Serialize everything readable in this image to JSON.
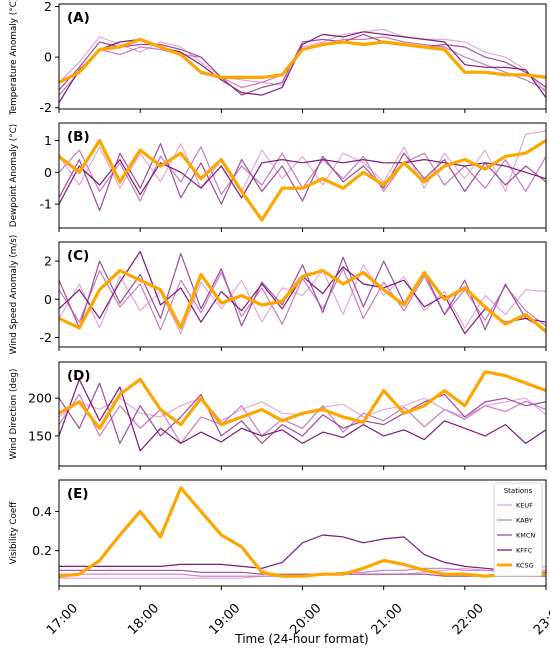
{
  "figure": {
    "xlabel": "Time (24-hour format)",
    "x_ticks": [
      "17:00",
      "18:00",
      "19:00",
      "20:00",
      "21:00",
      "22:00",
      "23:00"
    ],
    "x_range": [
      17,
      23
    ]
  },
  "legend": {
    "title": "Stations",
    "entries": [
      {
        "name": "KEUF",
        "color": "#e3a8db"
      },
      {
        "name": "KABY",
        "color": "#c77dbe"
      },
      {
        "name": "KMCN",
        "color": "#a04c9c"
      },
      {
        "name": "KFFC",
        "color": "#7e1a78"
      },
      {
        "name": "KCSG",
        "color": "#ffa500"
      }
    ]
  },
  "chart_data": [
    {
      "type": "line",
      "panel_label": "(A)",
      "ylabel": "Temperature Anomaly (°C)",
      "ylim": [
        -2.05,
        2.1
      ],
      "yticks": [
        -2,
        0,
        2
      ],
      "x": [
        17.0,
        17.25,
        17.5,
        17.75,
        18.0,
        18.25,
        18.5,
        18.75,
        19.0,
        19.25,
        19.5,
        19.75,
        20.0,
        20.25,
        20.5,
        20.75,
        21.0,
        21.25,
        21.5,
        21.75,
        22.0,
        22.25,
        22.5,
        22.75,
        23.0
      ],
      "series": [
        {
          "name": "KEUF",
          "values": [
            -1.0,
            -0.2,
            0.8,
            0.5,
            0.2,
            0.6,
            0.4,
            -0.2,
            -0.8,
            -0.9,
            -1.0,
            -1.1,
            0.4,
            0.6,
            0.9,
            1.0,
            1.1,
            0.8,
            0.7,
            0.7,
            0.6,
            0.2,
            0.0,
            -0.5,
            -1.4
          ]
        },
        {
          "name": "KABY",
          "values": [
            -1.5,
            -0.6,
            0.3,
            0.1,
            0.4,
            0.3,
            0.1,
            0.0,
            -0.8,
            -1.2,
            -1.0,
            -0.7,
            0.3,
            0.5,
            0.7,
            0.7,
            0.8,
            0.6,
            0.5,
            0.4,
            0.0,
            -0.3,
            -0.6,
            -0.9,
            -1.3
          ]
        },
        {
          "name": "KMCN",
          "values": [
            -1.3,
            -0.4,
            0.6,
            0.4,
            0.5,
            0.5,
            0.3,
            0.0,
            -0.8,
            -1.5,
            -1.2,
            -1.0,
            0.6,
            0.7,
            0.6,
            0.9,
            0.6,
            0.5,
            0.4,
            0.5,
            0.4,
            0.0,
            -0.2,
            -0.6,
            -1.2
          ]
        },
        {
          "name": "KFFC",
          "values": [
            -1.8,
            -0.5,
            0.3,
            0.6,
            0.7,
            0.4,
            0.2,
            -0.3,
            -0.9,
            -1.4,
            -1.5,
            -1.2,
            0.5,
            0.9,
            0.8,
            1.0,
            0.9,
            0.8,
            0.7,
            0.6,
            -0.3,
            -0.4,
            -0.4,
            -0.5,
            -1.6
          ]
        },
        {
          "name": "KCSG",
          "values": [
            -1.0,
            -0.6,
            0.3,
            0.4,
            0.7,
            0.4,
            0.1,
            -0.6,
            -0.8,
            -0.8,
            -0.8,
            -0.7,
            0.3,
            0.5,
            0.6,
            0.5,
            0.6,
            0.5,
            0.4,
            0.3,
            -0.6,
            -0.6,
            -0.7,
            -0.7,
            -0.8
          ]
        }
      ]
    },
    {
      "type": "line",
      "panel_label": "(B)",
      "ylabel": "Dewpoint Anomaly (°C)",
      "ylim": [
        -1.75,
        1.55
      ],
      "yticks": [
        -1,
        0,
        1
      ],
      "x": [
        17.0,
        17.25,
        17.5,
        17.75,
        18.0,
        18.25,
        18.5,
        18.75,
        19.0,
        19.25,
        19.5,
        19.75,
        20.0,
        20.25,
        20.5,
        20.75,
        21.0,
        21.25,
        21.5,
        21.75,
        22.0,
        22.25,
        22.5,
        22.75,
        23.0
      ],
      "series": [
        {
          "name": "KEUF",
          "values": [
            0.5,
            -0.4,
            0.8,
            -0.5,
            0.6,
            -0.3,
            0.9,
            -0.5,
            0.4,
            -0.6,
            0.7,
            -0.2,
            0.5,
            -0.4,
            0.6,
            0.3,
            -0.3,
            0.8,
            -0.5,
            0.6,
            -0.2,
            0.7,
            -0.6,
            1.2,
            1.3
          ]
        },
        {
          "name": "KABY",
          "values": [
            0.0,
            0.7,
            -0.6,
            0.3,
            -0.9,
            0.5,
            -0.3,
            0.8,
            -0.7,
            0.2,
            -0.4,
            0.6,
            -0.5,
            0.4,
            -0.2,
            0.5,
            -0.6,
            0.3,
            0.6,
            -0.4,
            0.2,
            -0.5,
            0.4,
            -0.6,
            0.5
          ]
        },
        {
          "name": "KMCN",
          "values": [
            -0.8,
            0.4,
            -1.2,
            0.6,
            -0.5,
            0.9,
            -0.8,
            0.3,
            -1.0,
            0.4,
            -0.6,
            0.2,
            -0.9,
            0.5,
            -0.3,
            0.2,
            -0.5,
            0.6,
            -0.2,
            0.4,
            -0.6,
            0.3,
            -0.4,
            0.2,
            -0.3
          ]
        },
        {
          "name": "KFFC",
          "values": [
            -1.0,
            0.2,
            -0.4,
            0.4,
            -0.7,
            0.3,
            0.0,
            -0.5,
            0.2,
            -0.8,
            0.3,
            0.4,
            0.3,
            0.4,
            0.3,
            0.4,
            0.3,
            0.3,
            0.4,
            0.3,
            0.2,
            0.3,
            0.2,
            0.0,
            -0.2
          ]
        },
        {
          "name": "KCSG",
          "values": [
            0.5,
            0.0,
            1.0,
            -0.3,
            0.7,
            0.2,
            0.6,
            -0.2,
            0.4,
            -0.6,
            -1.5,
            -0.5,
            -0.5,
            -0.2,
            -0.5,
            0.0,
            -0.4,
            0.3,
            -0.3,
            0.2,
            0.4,
            0.1,
            0.5,
            0.6,
            1.0
          ]
        }
      ]
    },
    {
      "type": "line",
      "panel_label": "(C)",
      "ylabel": "Wind Speed Anomaly (m/s)",
      "ylim": [
        -2.5,
        3.0
      ],
      "yticks": [
        -2,
        0,
        2
      ],
      "x": [
        17.0,
        17.25,
        17.5,
        17.75,
        18.0,
        18.25,
        18.5,
        18.75,
        19.0,
        19.25,
        19.5,
        19.75,
        20.0,
        20.25,
        20.5,
        20.75,
        21.0,
        21.25,
        21.5,
        21.75,
        22.0,
        22.25,
        22.5,
        22.75,
        23.0
      ],
      "series": [
        {
          "name": "KEUF",
          "values": [
            -1.0,
            0.8,
            -1.5,
            1.2,
            -0.6,
            0.4,
            -1.8,
            0.9,
            -0.5,
            1.0,
            -1.2,
            0.6,
            0.2,
            1.5,
            -0.8,
            1.8,
            0.2,
            1.2,
            -0.6,
            0.4,
            -1.5,
            0.2,
            -0.8,
            0.5,
            0.4
          ]
        },
        {
          "name": "KABY",
          "values": [
            0.5,
            -1.2,
            1.5,
            -0.4,
            0.8,
            -1.6,
            1.0,
            -0.7,
            1.4,
            -0.9,
            0.6,
            -1.3,
            1.1,
            -0.5,
            1.6,
            -1.0,
            0.9,
            -0.6,
            1.2,
            -0.8,
            0.5,
            -1.1,
            0.7,
            -0.6,
            -1.4
          ]
        },
        {
          "name": "KMCN",
          "values": [
            1.0,
            -1.5,
            2.0,
            -0.2,
            1.3,
            -1.0,
            2.4,
            -0.5,
            1.6,
            -1.4,
            0.9,
            -0.3,
            1.8,
            -0.7,
            2.2,
            -0.4,
            2.0,
            -0.2,
            1.4,
            -0.8,
            1.0,
            -1.6,
            0.8,
            -1.0,
            -1.6
          ]
        },
        {
          "name": "KFFC",
          "values": [
            -0.5,
            0.5,
            -1.0,
            0.9,
            2.5,
            -0.3,
            0.6,
            -1.2,
            0.4,
            -0.6,
            0.8,
            -0.5,
            1.2,
            0.3,
            1.7,
            0.8,
            0.6,
            1.0,
            -0.4,
            0.2,
            -1.8,
            -0.5,
            -1.2,
            -1.0,
            -1.2
          ]
        },
        {
          "name": "KCSG",
          "values": [
            -1.0,
            -1.5,
            0.5,
            1.5,
            1.0,
            0.5,
            -1.5,
            1.3,
            -0.2,
            0.2,
            -0.3,
            -0.1,
            1.2,
            1.5,
            0.8,
            1.4,
            0.5,
            -0.3,
            1.4,
            0.0,
            0.6,
            -0.4,
            -1.3,
            -0.8,
            -1.7
          ]
        }
      ]
    },
    {
      "type": "line",
      "panel_label": "(D)",
      "ylabel": "Wind Direction (deg)",
      "ylim": [
        110,
        248
      ],
      "yticks": [
        150,
        200
      ],
      "x": [
        17.0,
        17.25,
        17.5,
        17.75,
        18.0,
        18.25,
        18.5,
        18.75,
        19.0,
        19.25,
        19.5,
        19.75,
        20.0,
        20.25,
        20.5,
        20.75,
        21.0,
        21.25,
        21.5,
        21.75,
        22.0,
        22.25,
        22.5,
        22.75,
        23.0
      ],
      "series": [
        {
          "name": "KEUF",
          "values": [
            175,
            195,
            185,
            200,
            180,
            175,
            190,
            200,
            170,
            185,
            195,
            180,
            178,
            188,
            192,
            175,
            185,
            190,
            200,
            185,
            175,
            190,
            195,
            200,
            178
          ]
        },
        {
          "name": "KABY",
          "values": [
            165,
            205,
            150,
            190,
            160,
            185,
            140,
            175,
            165,
            190,
            150,
            172,
            160,
            190,
            155,
            180,
            170,
            188,
            162,
            185,
            172,
            190,
            182,
            196,
            185
          ]
        },
        {
          "name": "KMCN",
          "values": [
            200,
            160,
            220,
            140,
            190,
            150,
            175,
            205,
            150,
            170,
            140,
            165,
            150,
            178,
            160,
            170,
            165,
            180,
            195,
            205,
            175,
            195,
            200,
            190,
            195
          ]
        },
        {
          "name": "KFFC",
          "values": [
            150,
            225,
            170,
            215,
            130,
            160,
            140,
            155,
            142,
            160,
            150,
            158,
            140,
            155,
            148,
            165,
            150,
            158,
            145,
            170,
            160,
            150,
            165,
            140,
            158
          ]
        },
        {
          "name": "KCSG",
          "values": [
            180,
            195,
            160,
            205,
            225,
            185,
            165,
            200,
            165,
            175,
            185,
            170,
            180,
            185,
            175,
            168,
            210,
            180,
            190,
            210,
            190,
            235,
            230,
            220,
            210
          ]
        }
      ]
    },
    {
      "type": "line",
      "panel_label": "(E)",
      "ylabel": "Visibility Coeff",
      "ylim": [
        0.02,
        0.56
      ],
      "yticks": [
        0.2,
        0.4
      ],
      "x": [
        17.0,
        17.25,
        17.5,
        17.75,
        18.0,
        18.25,
        18.5,
        18.75,
        19.0,
        19.25,
        19.5,
        19.75,
        20.0,
        20.25,
        20.5,
        20.75,
        21.0,
        21.25,
        21.5,
        21.75,
        22.0,
        22.25,
        22.5,
        22.75,
        23.0
      ],
      "series": [
        {
          "name": "KEUF",
          "values": [
            0.06,
            0.06,
            0.06,
            0.06,
            0.06,
            0.06,
            0.06,
            0.06,
            0.06,
            0.06,
            0.07,
            0.07,
            0.08,
            0.08,
            0.08,
            0.08,
            0.08,
            0.08,
            0.09,
            0.1,
            0.11,
            0.1,
            0.09,
            0.1,
            0.12
          ]
        },
        {
          "name": "KABY",
          "values": [
            0.08,
            0.08,
            0.08,
            0.08,
            0.08,
            0.08,
            0.08,
            0.07,
            0.07,
            0.07,
            0.07,
            0.07,
            0.08,
            0.08,
            0.09,
            0.09,
            0.1,
            0.1,
            0.11,
            0.11,
            0.1,
            0.1,
            0.1,
            0.1,
            0.1
          ]
        },
        {
          "name": "KMCN",
          "values": [
            0.1,
            0.1,
            0.1,
            0.1,
            0.1,
            0.1,
            0.1,
            0.09,
            0.09,
            0.09,
            0.08,
            0.08,
            0.08,
            0.08,
            0.08,
            0.08,
            0.08,
            0.08,
            0.08,
            0.07,
            0.07,
            0.07,
            0.07,
            0.07,
            0.07
          ]
        },
        {
          "name": "KFFC",
          "values": [
            0.12,
            0.12,
            0.12,
            0.12,
            0.12,
            0.12,
            0.13,
            0.13,
            0.13,
            0.12,
            0.11,
            0.14,
            0.24,
            0.28,
            0.27,
            0.24,
            0.26,
            0.27,
            0.18,
            0.14,
            0.12,
            0.11,
            0.1,
            0.09,
            0.09
          ]
        },
        {
          "name": "KCSG",
          "values": [
            0.07,
            0.08,
            0.15,
            0.28,
            0.4,
            0.27,
            0.52,
            0.4,
            0.28,
            0.22,
            0.09,
            0.07,
            0.07,
            0.08,
            0.08,
            0.11,
            0.15,
            0.13,
            0.1,
            0.08,
            0.08,
            0.07,
            0.08,
            0.08,
            0.08
          ]
        }
      ]
    }
  ]
}
